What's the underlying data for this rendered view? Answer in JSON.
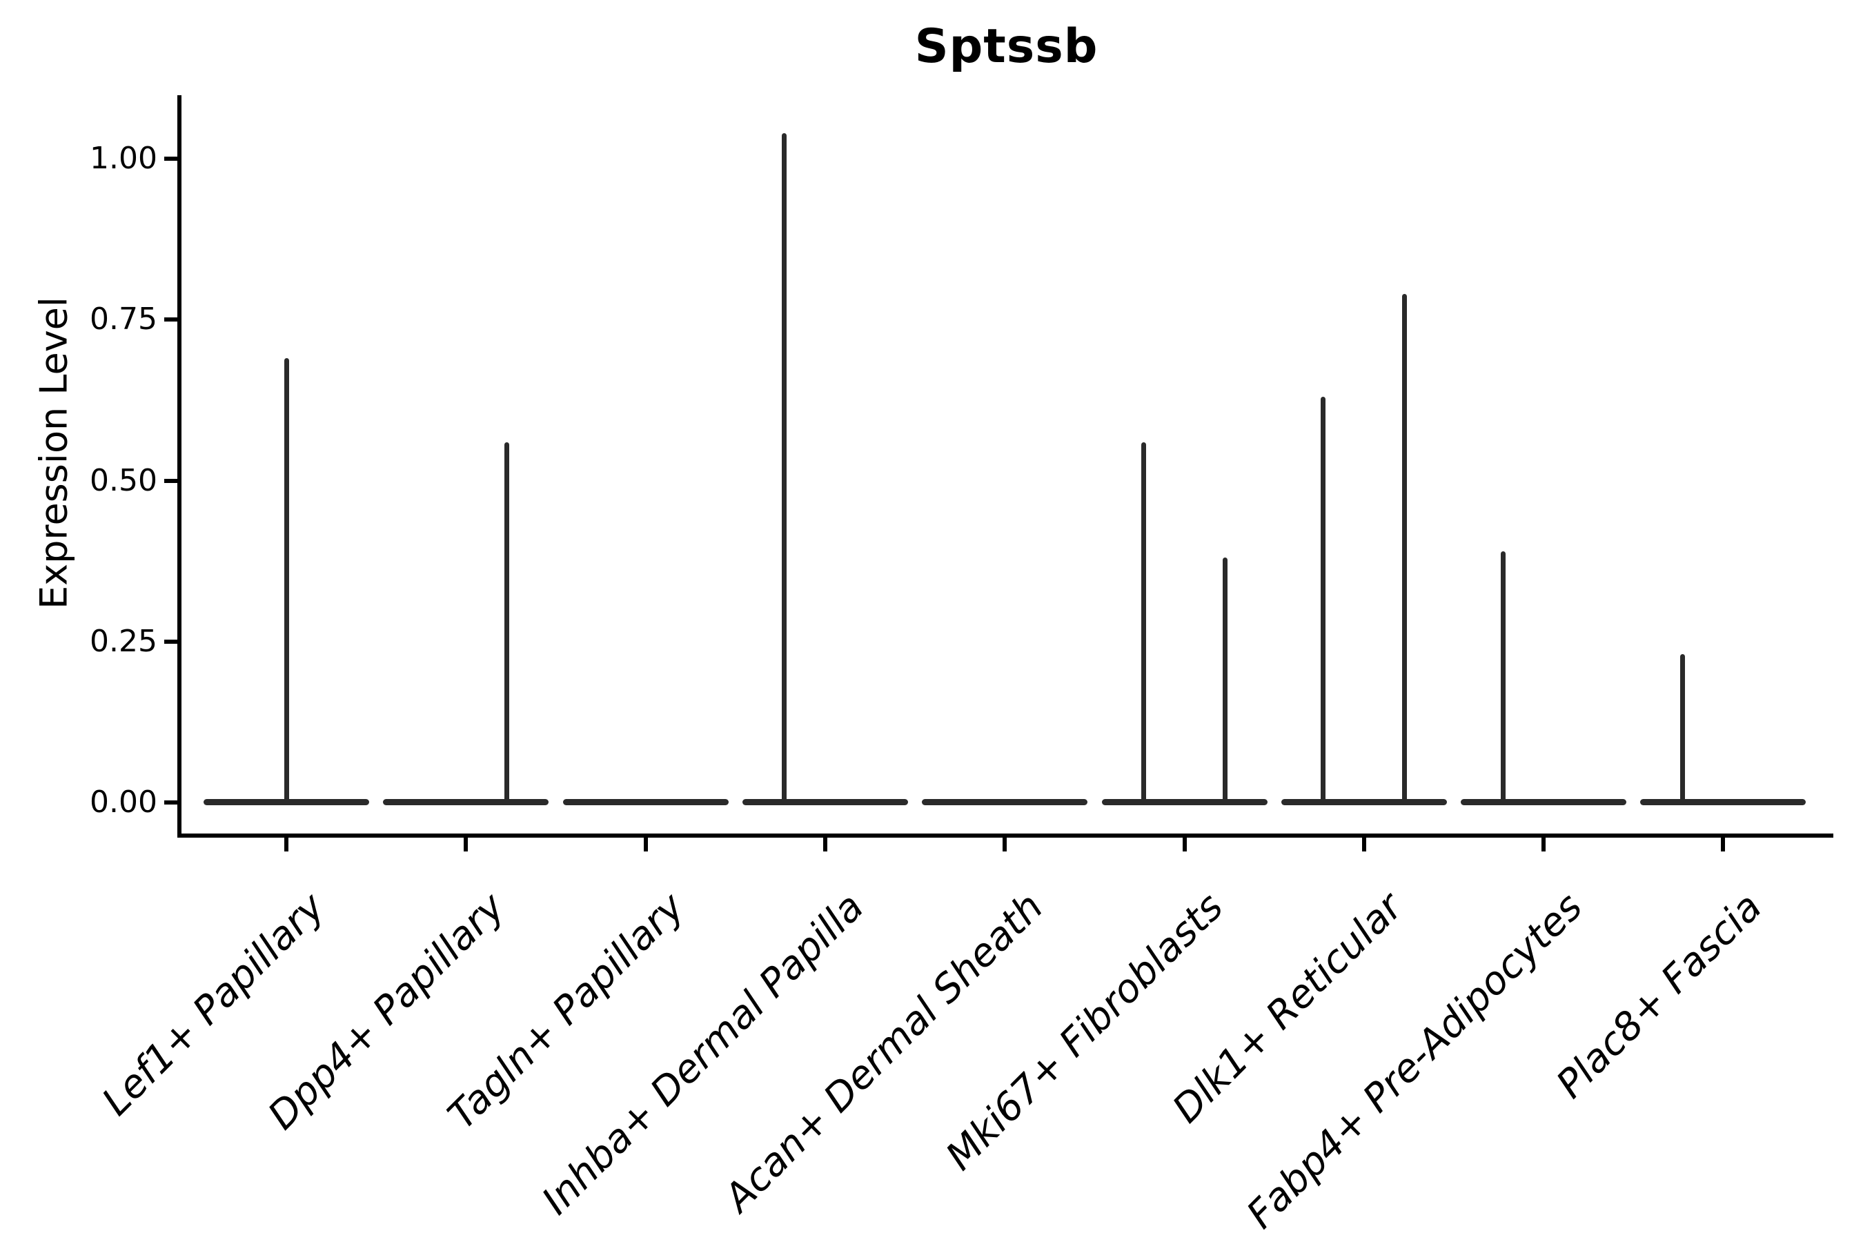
{
  "title": "Sptssb",
  "ylabel": "Expression Level",
  "chart_data": {
    "type": "violin",
    "title": "Sptssb",
    "xlabel": "",
    "ylabel": "Expression Level",
    "ylim": [
      -0.05,
      1.1
    ],
    "grid": false,
    "legend": "none",
    "yticks": [
      {
        "value": 0.0,
        "label": "0.00"
      },
      {
        "value": 0.25,
        "label": "0.25"
      },
      {
        "value": 0.5,
        "label": "0.50"
      },
      {
        "value": 0.75,
        "label": "0.75"
      },
      {
        "value": 1.0,
        "label": "1.00"
      }
    ],
    "categories": [
      "Lef1+ Papillary",
      "Dpp4+ Papillary",
      "Tagln+ Papillary",
      "Inhba+ Dermal Papilla",
      "Acan+ Dermal Sheath",
      "Mki67+ Fibroblasts",
      "Dlk1+ Reticular",
      "Fabp4+ Pre-Adipocytes",
      "Plac8+ Fascia"
    ],
    "description": "Flat violins at expression 0 with thin vertical density spikes; spike offset is fraction of category spacing from category center, max is expression level of spike tip",
    "violins": [
      {
        "category": "Lef1+ Papillary",
        "baseline": 0,
        "spikes": [
          {
            "offset": 0.0,
            "max": 0.69
          }
        ]
      },
      {
        "category": "Dpp4+ Papillary",
        "baseline": 0,
        "spikes": [
          {
            "offset": 0.227,
            "max": 0.56
          }
        ]
      },
      {
        "category": "Tagln+ Papillary",
        "baseline": 0,
        "spikes": []
      },
      {
        "category": "Inhba+ Dermal Papilla",
        "baseline": 0,
        "spikes": [
          {
            "offset": -0.227,
            "max": 1.04
          }
        ]
      },
      {
        "category": "Acan+ Dermal Sheath",
        "baseline": 0,
        "spikes": []
      },
      {
        "category": "Mki67+ Fibroblasts",
        "baseline": 0,
        "spikes": [
          {
            "offset": -0.227,
            "max": 0.56
          },
          {
            "offset": 0.227,
            "max": 0.38
          }
        ]
      },
      {
        "category": "Dlk1+ Reticular",
        "baseline": 0,
        "spikes": [
          {
            "offset": -0.227,
            "max": 0.63
          },
          {
            "offset": 0.227,
            "max": 0.79
          }
        ]
      },
      {
        "category": "Fabp4+ Pre-Adipocytes",
        "baseline": 0,
        "spikes": [
          {
            "offset": -0.227,
            "max": 0.39
          }
        ]
      },
      {
        "category": "Plac8+ Fascia",
        "baseline": 0,
        "spikes": [
          {
            "offset": -0.227,
            "max": 0.23
          }
        ]
      }
    ]
  }
}
